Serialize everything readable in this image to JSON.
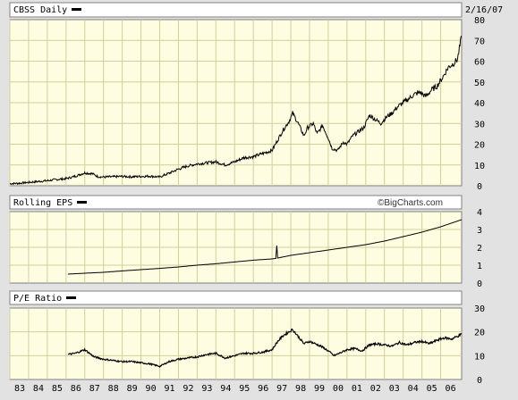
{
  "header": {
    "symbol_label": "CBSS Daily",
    "date": "2/16/07",
    "watermark": "©BigCharts.com"
  },
  "colors": {
    "plot_background": "#fffde1",
    "panel_background": "#e2e2e2",
    "grid": "#cfcf9c",
    "line": "#000000"
  },
  "chart_data": [
    {
      "type": "line",
      "title": "CBSS Daily",
      "ylim": [
        0,
        80
      ],
      "yticks": [
        0,
        10,
        20,
        30,
        40,
        50,
        60,
        70,
        80
      ],
      "grid": true,
      "series": [
        {
          "x": [
            1983.0,
            1983.5,
            1984.0,
            1984.5,
            1985.0,
            1985.5,
            1986.0,
            1986.5,
            1987.0,
            1987.4,
            1987.7,
            1988.0,
            1988.5,
            1989.0,
            1989.5,
            1990.0,
            1990.5,
            1991.0,
            1991.5,
            1992.0,
            1992.5,
            1993.0,
            1993.5,
            1994.0,
            1994.5,
            1995.0,
            1995.5,
            1996.0,
            1996.5,
            1997.0,
            1997.3,
            1997.6,
            1997.9,
            1998.1,
            1998.4,
            1998.7,
            1998.9,
            1999.2,
            1999.4,
            1999.7,
            2000.0,
            2000.2,
            2000.5,
            2000.8,
            2001.0,
            2001.3,
            2001.6,
            2001.9,
            2002.2,
            2002.5,
            2002.8,
            2003.1,
            2003.4,
            2003.7,
            2004.0,
            2004.3,
            2004.6,
            2004.9,
            2005.2,
            2005.5,
            2005.8,
            2006.1,
            2006.4,
            2006.7,
            2006.9,
            2007.0,
            2007.12
          ],
          "y": [
            1.0,
            1.2,
            1.6,
            2.0,
            2.4,
            3.0,
            3.4,
            4.6,
            6.2,
            5.8,
            4.4,
            4.2,
            4.3,
            4.5,
            4.3,
            4.5,
            4.6,
            4.2,
            6.0,
            8.0,
            9.5,
            10.5,
            11.0,
            11.5,
            10.0,
            11.5,
            13.5,
            14.0,
            15.5,
            17.0,
            22.0,
            27.0,
            31.0,
            35.0,
            30.0,
            24.0,
            28.0,
            30.0,
            25.0,
            29.0,
            23.0,
            18.0,
            17.0,
            21.0,
            20.0,
            24.0,
            26.0,
            28.0,
            34.0,
            32.0,
            30.0,
            33.0,
            35.0,
            38.0,
            40.0,
            42.0,
            44.0,
            45.0,
            43.0,
            46.0,
            48.0,
            52.0,
            57.0,
            59.0,
            61.0,
            66.0,
            72.0
          ]
        }
      ]
    },
    {
      "type": "line",
      "title": "Rolling EPS",
      "ylim": [
        0,
        4
      ],
      "yticks": [
        0,
        1,
        2,
        3,
        4
      ],
      "grid": true,
      "series": [
        {
          "x": [
            1986.1,
            1987.0,
            1988.0,
            1989.0,
            1990.0,
            1991.0,
            1992.0,
            1993.0,
            1994.0,
            1995.0,
            1996.0,
            1997.0,
            1997.2,
            1997.25,
            1997.3,
            1998.0,
            1999.0,
            2000.0,
            2001.0,
            2002.0,
            2003.0,
            2004.0,
            2005.0,
            2006.0,
            2007.12
          ],
          "y": [
            0.5,
            0.55,
            0.6,
            0.68,
            0.75,
            0.82,
            0.9,
            1.0,
            1.08,
            1.18,
            1.28,
            1.35,
            1.38,
            2.1,
            1.4,
            1.55,
            1.7,
            1.85,
            2.0,
            2.15,
            2.35,
            2.6,
            2.85,
            3.15,
            3.55
          ]
        }
      ]
    },
    {
      "type": "line",
      "title": "P/E Ratio",
      "ylim": [
        0,
        30
      ],
      "yticks": [
        0,
        10,
        20,
        30
      ],
      "grid": true,
      "series": [
        {
          "x": [
            1986.1,
            1986.5,
            1987.0,
            1987.5,
            1988.0,
            1988.5,
            1989.0,
            1989.5,
            1990.0,
            1990.5,
            1991.0,
            1991.5,
            1992.0,
            1992.5,
            1993.0,
            1993.5,
            1994.0,
            1994.5,
            1995.0,
            1995.5,
            1996.0,
            1996.5,
            1997.0,
            1997.3,
            1997.6,
            1997.9,
            1998.1,
            1998.4,
            1998.7,
            1999.0,
            1999.3,
            1999.6,
            2000.0,
            2000.3,
            2000.6,
            2001.0,
            2001.4,
            2001.8,
            2002.2,
            2002.6,
            2003.0,
            2003.4,
            2003.8,
            2004.2,
            2004.6,
            2005.0,
            2005.4,
            2005.8,
            2006.2,
            2006.6,
            2007.12
          ],
          "y": [
            10.5,
            11.0,
            12.5,
            9.5,
            8.5,
            8.0,
            7.5,
            7.5,
            7.0,
            6.5,
            5.5,
            7.5,
            8.5,
            9.0,
            9.5,
            10.5,
            11.0,
            9.0,
            10.0,
            11.0,
            11.0,
            11.5,
            12.5,
            16.0,
            18.5,
            20.0,
            21.0,
            18.0,
            15.0,
            16.0,
            15.0,
            14.0,
            12.0,
            10.0,
            11.0,
            12.5,
            13.0,
            12.0,
            14.5,
            15.0,
            14.5,
            14.0,
            15.5,
            14.5,
            15.5,
            16.0,
            15.0,
            16.5,
            17.5,
            17.0,
            19.0
          ]
        }
      ]
    }
  ],
  "x_axis": {
    "range": [
      1983.0,
      2007.12
    ],
    "tick_positions": [
      1983,
      1984,
      1985,
      1986,
      1987,
      1988,
      1989,
      1990,
      1991,
      1992,
      1993,
      1994,
      1995,
      1996,
      1997,
      1998,
      1999,
      2000,
      2001,
      2002,
      2003,
      2004,
      2005,
      2006
    ],
    "tick_labels": [
      "83",
      "84",
      "85",
      "86",
      "87",
      "88",
      "89",
      "90",
      "91",
      "92",
      "93",
      "94",
      "95",
      "96",
      "97",
      "98",
      "99",
      "00",
      "01",
      "02",
      "03",
      "04",
      "05",
      "06"
    ]
  }
}
